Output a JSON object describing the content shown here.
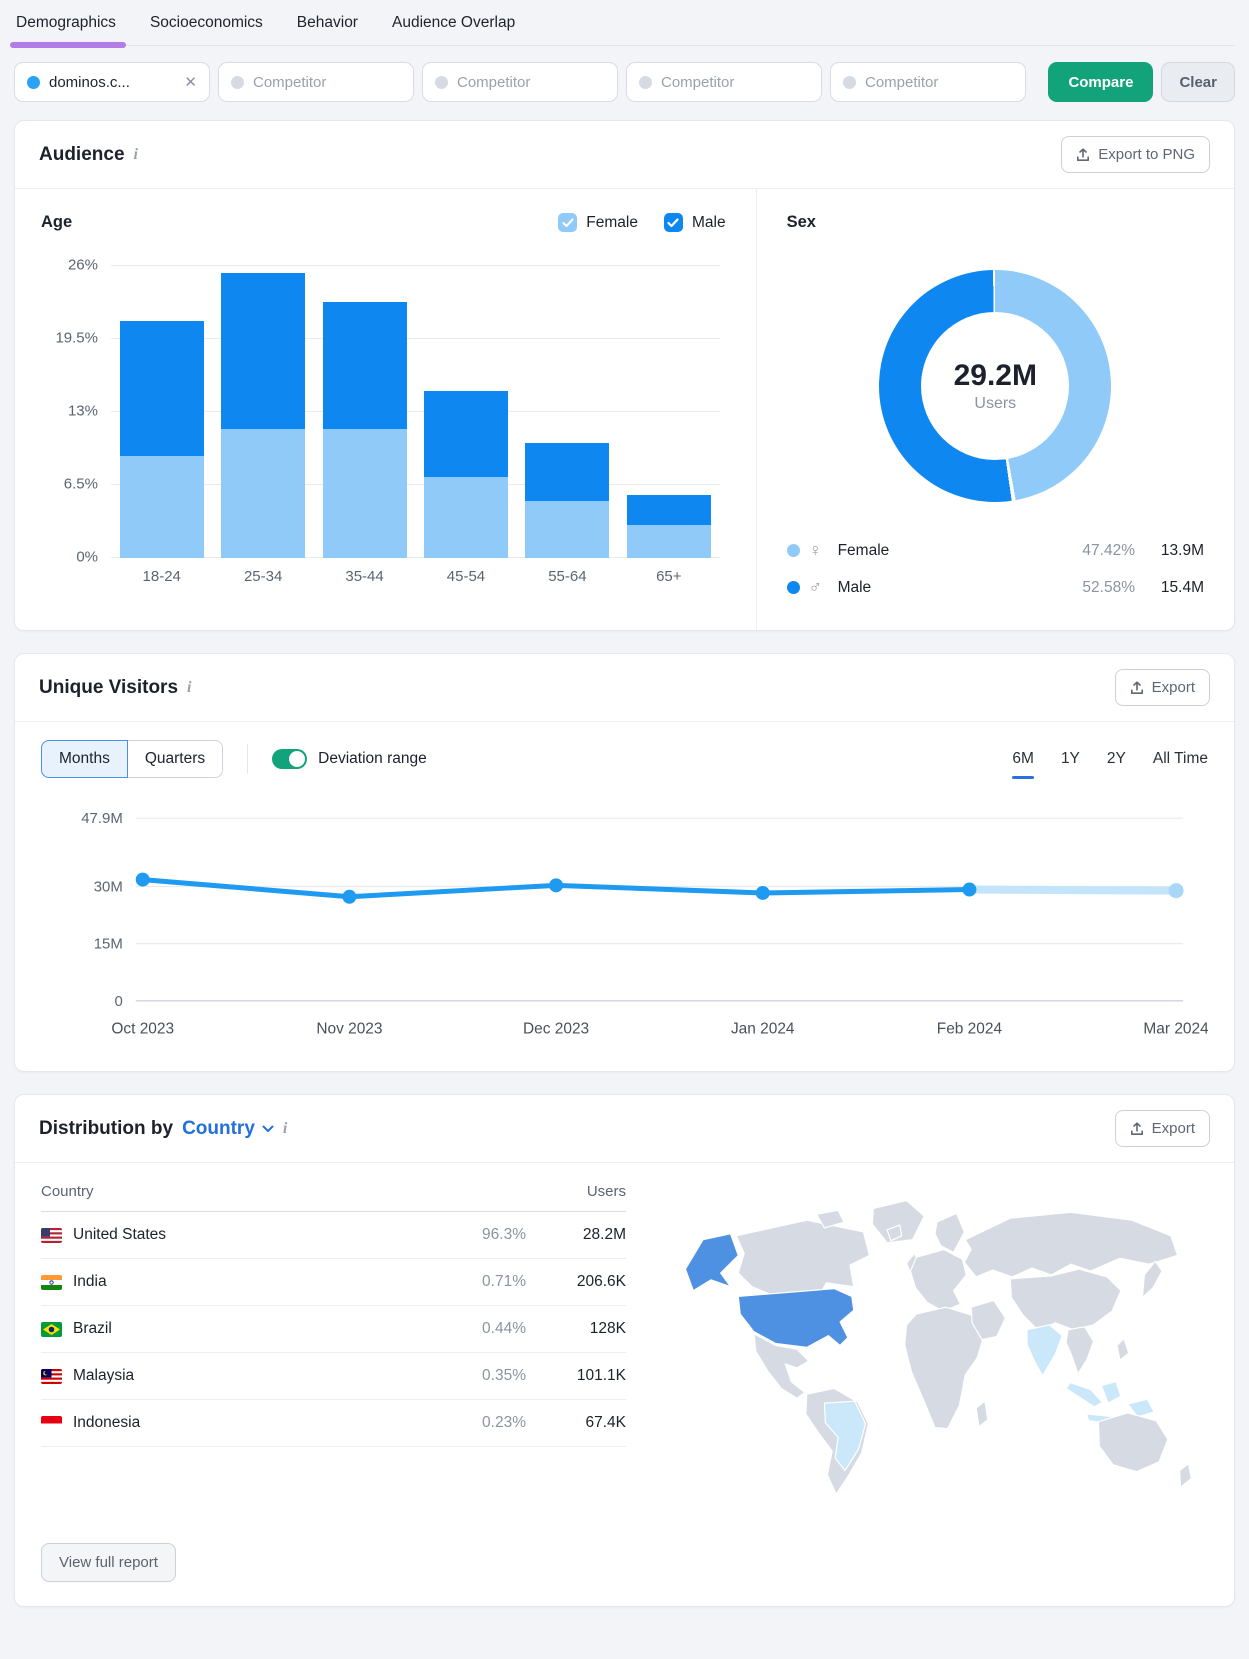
{
  "colors": {
    "accent_blue": "#0f87f0",
    "light_blue": "#8fcaf9",
    "forecast_blue": "#c3e4fa",
    "line_blue": "#1e9af0",
    "purple": "#b27ce6",
    "green": "#12a37a",
    "link_blue": "#2370dd",
    "map_land": "#d6dae3",
    "map_us": "#4e90e2",
    "map_highlight": "#cbe8fb"
  },
  "tabs": [
    {
      "label": "Demographics",
      "active": true
    },
    {
      "label": "Socioeconomics",
      "active": false
    },
    {
      "label": "Behavior",
      "active": false
    },
    {
      "label": "Audience Overlap",
      "active": false
    }
  ],
  "filters": {
    "domain": "dominos.c...",
    "competitor_placeholder": "Competitor",
    "competitor_count": 4,
    "compare_label": "Compare",
    "clear_label": "Clear"
  },
  "audience": {
    "title": "Audience",
    "export_label": "Export to PNG",
    "age": {
      "title": "Age",
      "chart_data": {
        "type": "bar",
        "stacked": true,
        "categories": [
          "18-24",
          "25-34",
          "35-44",
          "45-54",
          "55-64",
          "65+"
        ],
        "series": [
          {
            "name": "Female",
            "values": [
              9.1,
              11.5,
              11.5,
              7.2,
              5.1,
              2.9
            ]
          },
          {
            "name": "Male",
            "values": [
              12.0,
              13.9,
              11.3,
              7.7,
              5.1,
              2.7
            ]
          }
        ],
        "yticks": [
          {
            "label": "26%",
            "value": 26
          },
          {
            "label": "19.5%",
            "value": 19.5
          },
          {
            "label": "13%",
            "value": 13
          },
          {
            "label": "6.5%",
            "value": 6.5
          },
          {
            "label": "0%",
            "value": 0
          }
        ],
        "ylim": [
          0,
          26
        ],
        "legend_position": "top-right"
      }
    },
    "sex": {
      "title": "Sex",
      "center_value": "29.2M",
      "center_label": "Users",
      "chart_data": {
        "type": "pie",
        "slices": [
          {
            "label": "Female",
            "percent": 47.42,
            "percent_label": "47.42%",
            "users": "13.9M"
          },
          {
            "label": "Male",
            "percent": 52.58,
            "percent_label": "52.58%",
            "users": "15.4M"
          }
        ]
      }
    }
  },
  "unique_visitors": {
    "title": "Unique Visitors",
    "export_label": "Export",
    "view_toggle": [
      "Months",
      "Quarters"
    ],
    "view_selected": "Months",
    "deviation_label": "Deviation range",
    "deviation_on": true,
    "ranges": [
      {
        "label": "6M",
        "active": true
      },
      {
        "label": "1Y",
        "active": false
      },
      {
        "label": "2Y",
        "active": false
      },
      {
        "label": "All Time",
        "active": false
      }
    ],
    "chart_data": {
      "type": "line",
      "x": [
        "Oct 2023",
        "Nov 2023",
        "Dec 2023",
        "Jan 2024",
        "Feb 2024",
        "Mar 2024"
      ],
      "values": [
        31.8,
        27.3,
        30.3,
        28.3,
        29.2,
        28.9
      ],
      "projected_from_index": 4,
      "yticks": [
        {
          "label": "47.9M",
          "value": 47.9
        },
        {
          "label": "30M",
          "value": 30
        },
        {
          "label": "15M",
          "value": 15
        },
        {
          "label": "0",
          "value": 0
        }
      ],
      "ylim": [
        0,
        47.9
      ],
      "grid": true
    }
  },
  "distribution": {
    "title_prefix": "Distribution by",
    "dimension": "Country",
    "export_label": "Export",
    "table": {
      "country_header": "Country",
      "users_header": "Users",
      "rows": [
        {
          "country": "United States",
          "flag": "us",
          "percent": "96.3%",
          "users": "28.2M"
        },
        {
          "country": "India",
          "flag": "in",
          "percent": "0.71%",
          "users": "206.6K"
        },
        {
          "country": "Brazil",
          "flag": "br",
          "percent": "0.44%",
          "users": "128K"
        },
        {
          "country": "Malaysia",
          "flag": "my",
          "percent": "0.35%",
          "users": "101.1K"
        },
        {
          "country": "Indonesia",
          "flag": "id",
          "percent": "0.23%",
          "users": "67.4K"
        }
      ]
    },
    "map_highlights": {
      "strong": [
        "United States"
      ],
      "light": [
        "Brazil",
        "India",
        "Malaysia",
        "Indonesia"
      ]
    },
    "view_full_report": "View full report"
  }
}
